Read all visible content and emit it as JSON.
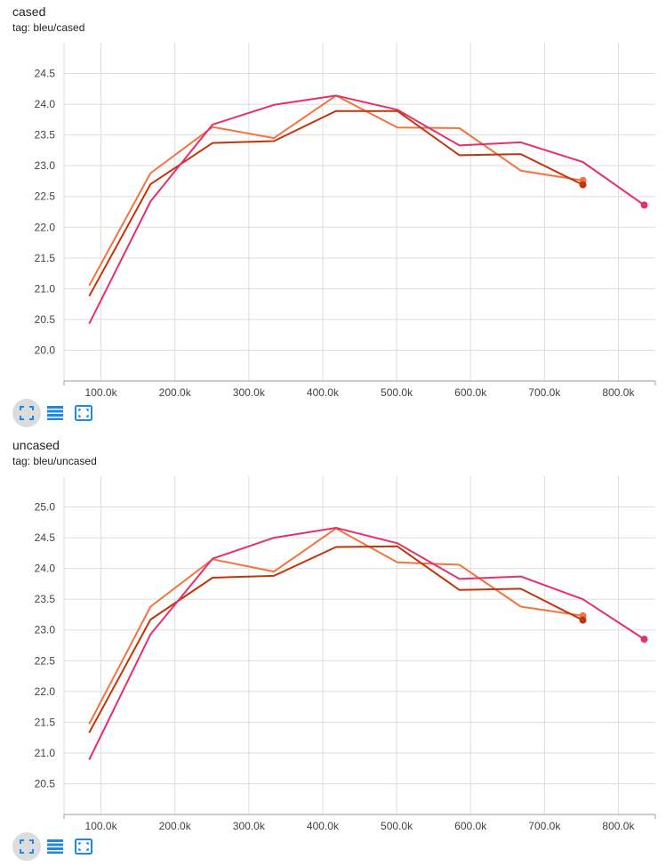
{
  "colors": {
    "run_a": "#bf360c",
    "run_b": "#f4743f",
    "run_c": "#e5306e",
    "grid": "#dddddd",
    "axis": "#9e9e9e",
    "icon": "#1e88e5"
  },
  "toolbar_icons": [
    "fullscreen-icon",
    "data-selection-icon",
    "fit-domain-icon"
  ],
  "cards": [
    {
      "title": "cased",
      "tag": "tag: bleu/cased",
      "chart_data": {
        "type": "line",
        "title": "cased",
        "xlim": [
          50000,
          850000
        ],
        "ylim": [
          19.5,
          25.0
        ],
        "x_ticks": [
          "100.0k",
          "200.0k",
          "300.0k",
          "400.0k",
          "500.0k",
          "600.0k",
          "700.0k",
          "800.0k"
        ],
        "x_tick_values": [
          100000,
          200000,
          300000,
          400000,
          500000,
          600000,
          700000,
          800000
        ],
        "y_ticks": [
          "20.0",
          "20.5",
          "21.0",
          "21.5",
          "22.0",
          "22.5",
          "23.0",
          "23.5",
          "24.0",
          "24.5"
        ],
        "y_tick_values": [
          20.0,
          20.5,
          21.0,
          21.5,
          22.0,
          22.5,
          23.0,
          23.5,
          24.0,
          24.5
        ],
        "grid": true,
        "series": [
          {
            "color_key": "run_b",
            "x": [
              84000,
              167000,
              251000,
              334000,
              418000,
              501000,
              585000,
              668000,
              752000
            ],
            "y": [
              21.05,
              22.88,
              23.63,
              23.45,
              24.14,
              23.62,
              23.61,
              22.92,
              22.76
            ]
          },
          {
            "color_key": "run_a",
            "x": [
              84000,
              167000,
              251000,
              334000,
              418000,
              501000,
              585000,
              668000,
              752000
            ],
            "y": [
              20.88,
              22.7,
              23.37,
              23.4,
              23.89,
              23.89,
              23.17,
              23.19,
              22.69
            ]
          },
          {
            "color_key": "run_c",
            "x": [
              84000,
              167000,
              251000,
              334000,
              418000,
              501000,
              585000,
              668000,
              752000,
              835000
            ],
            "y": [
              20.43,
              22.42,
              23.67,
              23.99,
              24.14,
              23.91,
              23.33,
              23.38,
              23.06,
              22.36
            ]
          }
        ]
      }
    },
    {
      "title": "uncased",
      "tag": "tag: bleu/uncased",
      "chart_data": {
        "type": "line",
        "title": "uncased",
        "xlim": [
          50000,
          850000
        ],
        "ylim": [
          20.0,
          25.5
        ],
        "x_ticks": [
          "100.0k",
          "200.0k",
          "300.0k",
          "400.0k",
          "500.0k",
          "600.0k",
          "700.0k",
          "800.0k"
        ],
        "x_tick_values": [
          100000,
          200000,
          300000,
          400000,
          500000,
          600000,
          700000,
          800000
        ],
        "y_ticks": [
          "20.5",
          "21.0",
          "21.5",
          "22.0",
          "22.5",
          "23.0",
          "23.5",
          "24.0",
          "24.5",
          "25.0"
        ],
        "y_tick_values": [
          20.5,
          21.0,
          21.5,
          22.0,
          22.5,
          23.0,
          23.5,
          24.0,
          24.5,
          25.0
        ],
        "grid": true,
        "series": [
          {
            "color_key": "run_b",
            "x": [
              84000,
              167000,
              251000,
              334000,
              418000,
              501000,
              585000,
              668000,
              752000
            ],
            "y": [
              21.47,
              23.38,
              24.15,
              23.95,
              24.65,
              24.1,
              24.06,
              23.38,
              23.23
            ]
          },
          {
            "color_key": "run_a",
            "x": [
              84000,
              167000,
              251000,
              334000,
              418000,
              501000,
              585000,
              668000,
              752000
            ],
            "y": [
              21.33,
              23.17,
              23.85,
              23.88,
              24.35,
              24.36,
              23.65,
              23.67,
              23.16
            ]
          },
          {
            "color_key": "run_c",
            "x": [
              84000,
              167000,
              251000,
              334000,
              418000,
              501000,
              585000,
              668000,
              752000,
              835000
            ],
            "y": [
              20.89,
              22.93,
              24.16,
              24.5,
              24.66,
              24.41,
              23.83,
              23.87,
              23.5,
              22.85
            ]
          }
        ]
      }
    }
  ]
}
